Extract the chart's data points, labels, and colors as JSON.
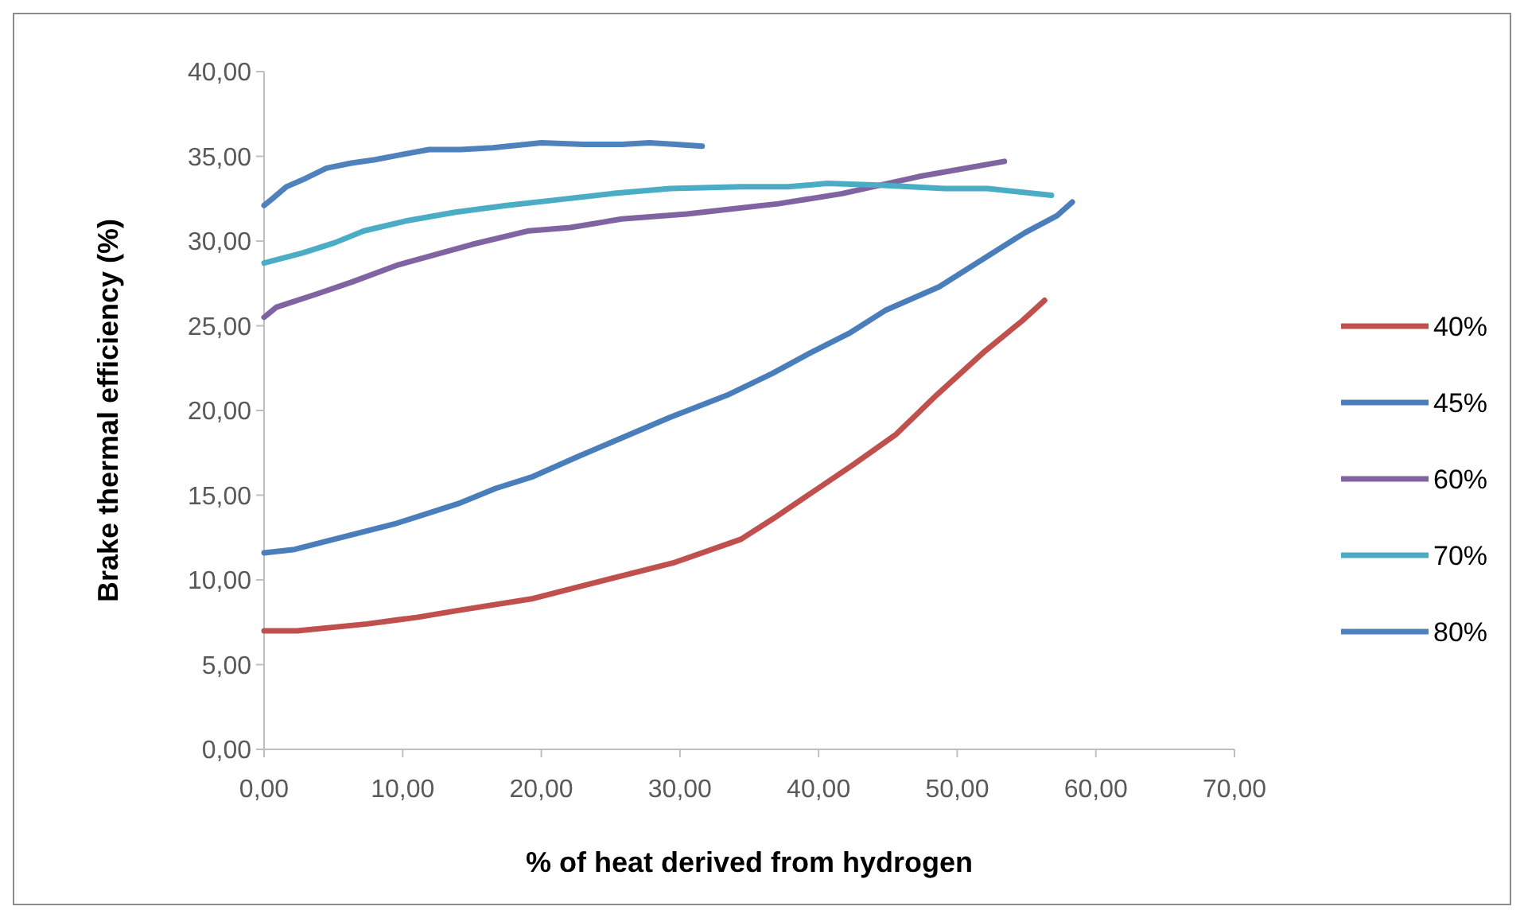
{
  "chart_data": {
    "type": "line",
    "xlabel": "% of heat derived from hydrogen",
    "ylabel": "Brake thermal efficiency (%)",
    "xlim": [
      0,
      70
    ],
    "ylim": [
      0,
      40
    ],
    "xticks": [
      {
        "value": 0,
        "label": "0,00"
      },
      {
        "value": 10,
        "label": "10,00"
      },
      {
        "value": 20,
        "label": "20,00"
      },
      {
        "value": 30,
        "label": "30,00"
      },
      {
        "value": 40,
        "label": "40,00"
      },
      {
        "value": 50,
        "label": "50,00"
      },
      {
        "value": 60,
        "label": "60,00"
      },
      {
        "value": 70,
        "label": "70,00"
      }
    ],
    "yticks": [
      {
        "value": 0,
        "label": "0,00"
      },
      {
        "value": 5,
        "label": "5,00"
      },
      {
        "value": 10,
        "label": "10,00"
      },
      {
        "value": 15,
        "label": "15,00"
      },
      {
        "value": 20,
        "label": "20,00"
      },
      {
        "value": 25,
        "label": "25,00"
      },
      {
        "value": 30,
        "label": "30,00"
      },
      {
        "value": 35,
        "label": "35,00"
      },
      {
        "value": 40,
        "label": "40,00"
      }
    ],
    "grid": false,
    "legend": "right",
    "line_style": "solid",
    "series": [
      {
        "name": "40%",
        "color": "#c0504d",
        "x": [
          0,
          2.4,
          7.4,
          11.1,
          14,
          19.4,
          22.7,
          29.5,
          34.4,
          36.7,
          42.5,
          45.6,
          48.5,
          52,
          54.7,
          56.3
        ],
        "values": [
          7,
          7,
          7.4,
          7.8,
          8.2,
          8.9,
          9.6,
          11,
          12.4,
          13.6,
          16.8,
          18.6,
          20.9,
          23.5,
          25.3,
          26.5
        ]
      },
      {
        "name": "45%",
        "color": "#4a7ebb",
        "x": [
          0,
          2.2,
          4.1,
          9.4,
          14,
          16.7,
          19.4,
          22.7,
          29.3,
          33.4,
          36.7,
          39.4,
          42.3,
          44.8,
          48.7,
          54.9,
          57.2,
          58.3
        ],
        "values": [
          11.6,
          11.8,
          12.2,
          13.3,
          14.5,
          15.4,
          16.1,
          17.3,
          19.6,
          20.9,
          22.2,
          23.4,
          24.6,
          25.9,
          27.3,
          30.5,
          31.5,
          32.3
        ]
      },
      {
        "name": "60%",
        "color": "#8064a2",
        "x": [
          0,
          0.9,
          3.9,
          6.4,
          9.7,
          15,
          19.1,
          22.1,
          25.8,
          30.5,
          37.1,
          41.7,
          47.2,
          53.4
        ],
        "values": [
          25.5,
          26.1,
          26.9,
          27.6,
          28.6,
          29.8,
          30.6,
          30.8,
          31.3,
          31.6,
          32.2,
          32.8,
          33.8,
          34.7
        ]
      },
      {
        "name": "70%",
        "color": "#4bacc6",
        "x": [
          0,
          2.8,
          5.1,
          7.2,
          10.3,
          13.8,
          17.5,
          20.8,
          25.1,
          29.3,
          34.4,
          37.8,
          40.6,
          44.4,
          49.1,
          52.2,
          56.8
        ],
        "values": [
          28.7,
          29.3,
          29.9,
          30.6,
          31.2,
          31.7,
          32.1,
          32.4,
          32.8,
          33.1,
          33.2,
          33.2,
          33.4,
          33.3,
          33.1,
          33.1,
          32.7
        ]
      },
      {
        "name": "80%",
        "color": "#4f81bd",
        "x": [
          0,
          0.6,
          1.6,
          3,
          4.5,
          6.3,
          8,
          9.9,
          11.9,
          14.2,
          16.5,
          20,
          23.1,
          25.8,
          27.8,
          29.7,
          31.6
        ],
        "values": [
          32.1,
          32.5,
          33.2,
          33.7,
          34.3,
          34.6,
          34.8,
          35.1,
          35.4,
          35.4,
          35.5,
          35.8,
          35.7,
          35.7,
          35.8,
          35.7,
          35.6
        ]
      }
    ]
  }
}
